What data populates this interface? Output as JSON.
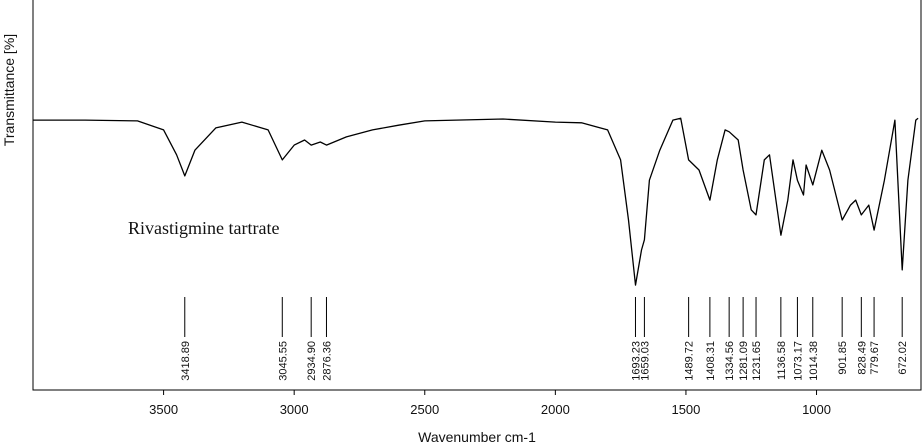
{
  "chart_data": {
    "type": "line",
    "annotation": "Rivastigmine tartrate",
    "x_label": "Wavenumber cm-1",
    "y_label": "Transmittance [%]",
    "color": "#000000",
    "xlim": [
      4000,
      600
    ],
    "ylim": [
      0,
      100
    ],
    "xticks": [
      3500,
      3000,
      2500,
      2000,
      1500,
      1000
    ],
    "x": [
      4000,
      3800,
      3600,
      3500,
      3450,
      3418.89,
      3380,
      3300,
      3200,
      3100,
      3045.55,
      3000,
      2960,
      2934.9,
      2900,
      2876.36,
      2800,
      2700,
      2600,
      2500,
      2200,
      2000,
      1900,
      1800,
      1750,
      1720,
      1693.23,
      1670,
      1659.03,
      1640,
      1600,
      1550,
      1520,
      1489.72,
      1450,
      1408.31,
      1380,
      1350,
      1334.56,
      1300,
      1281.09,
      1250,
      1231.65,
      1200,
      1180,
      1136.58,
      1110,
      1090,
      1073.17,
      1050,
      1040,
      1014.38,
      980,
      950,
      901.85,
      870,
      850,
      828.49,
      800,
      779.67,
      740,
      700,
      672.02,
      650,
      620,
      611
    ],
    "values": [
      69.2,
      69.2,
      69.0,
      66.7,
      60.3,
      54.9,
      61.5,
      67.2,
      68.7,
      66.7,
      59.0,
      62.8,
      64.1,
      62.8,
      63.6,
      62.8,
      64.9,
      66.7,
      67.9,
      69.0,
      69.5,
      68.7,
      68.5,
      66.7,
      59.0,
      43.6,
      26.9,
      35.9,
      38.5,
      53.8,
      61.5,
      69.2,
      69.7,
      59.0,
      56.4,
      48.7,
      59.0,
      66.7,
      66.2,
      64.1,
      56.4,
      46.2,
      44.9,
      59.0,
      60.3,
      39.7,
      48.7,
      59.0,
      53.8,
      50.0,
      57.7,
      52.6,
      61.5,
      56.4,
      43.6,
      47.4,
      48.7,
      44.9,
      47.4,
      41.0,
      53.8,
      69.2,
      30.8,
      53.8,
      69.2,
      69.7
    ],
    "peaks": [
      {
        "value": 3418.89,
        "label": "3418.89"
      },
      {
        "value": 3045.55,
        "label": "3045.55"
      },
      {
        "value": 2934.9,
        "label": "2934.90"
      },
      {
        "value": 2876.36,
        "label": "2876.36"
      },
      {
        "value": 1693.23,
        "label": "1693.23"
      },
      {
        "value": 1659.03,
        "label": "1659.03"
      },
      {
        "value": 1489.72,
        "label": "1489.72"
      },
      {
        "value": 1408.31,
        "label": "1408.31"
      },
      {
        "value": 1334.56,
        "label": "1334.56"
      },
      {
        "value": 1281.09,
        "label": "1281.09"
      },
      {
        "value": 1231.65,
        "label": "1231.65"
      },
      {
        "value": 1136.58,
        "label": "1136.58"
      },
      {
        "value": 1073.17,
        "label": "1073.17"
      },
      {
        "value": 1014.38,
        "label": "1014.38"
      },
      {
        "value": 901.85,
        "label": "901.85"
      },
      {
        "value": 828.49,
        "label": "828.49"
      },
      {
        "value": 779.67,
        "label": "779.67"
      },
      {
        "value": 672.02,
        "label": "672.02"
      }
    ]
  }
}
